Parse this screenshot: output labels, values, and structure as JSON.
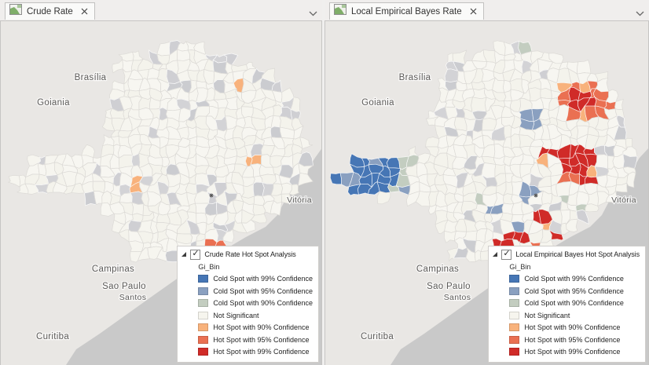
{
  "panes": [
    {
      "tab": "Crude Rate",
      "legend": {
        "title": "Crude Rate Hot Spot Analysis",
        "field": "Gi_Bin",
        "checked": true
      }
    },
    {
      "tab": "Local Empirical Bayes Rate",
      "legend": {
        "title": "Local Empirical Bayes Hot Spot Analysis",
        "field": "Gi_Bin",
        "checked": true
      }
    }
  ],
  "legend_classes": [
    {
      "key": "cold99",
      "label": "Cold Spot with 99% Confidence",
      "color": "#4676b5"
    },
    {
      "key": "cold95",
      "label": "Cold Spot with 95% Confidence",
      "color": "#8aa0c0"
    },
    {
      "key": "cold90",
      "label": "Cold Spot with 90% Confidence",
      "color": "#c3cdc0"
    },
    {
      "key": "notsig",
      "label": "Not Significant",
      "color": "#f6f5ee"
    },
    {
      "key": "hot90",
      "label": "Hot Spot with 90% Confidence",
      "color": "#f8b27c"
    },
    {
      "key": "hot95",
      "label": "Hot Spot with 95% Confidence",
      "color": "#ea7052"
    },
    {
      "key": "hot99",
      "label": "Hot Spot with 99% Confidence",
      "color": "#d02b28"
    }
  ],
  "map_labels": [
    "Brasília",
    "Goiania",
    "Vitória",
    "Campinas",
    "Sao Paulo",
    "Santos",
    "Curitiba"
  ],
  "basemap_colors": {
    "ocean": "#c9c9c9",
    "land": "#e9e7e4",
    "no_data_fill": "#cfcfd3",
    "boundary": "#d8d6d1",
    "label_text": "#5c5b59"
  }
}
